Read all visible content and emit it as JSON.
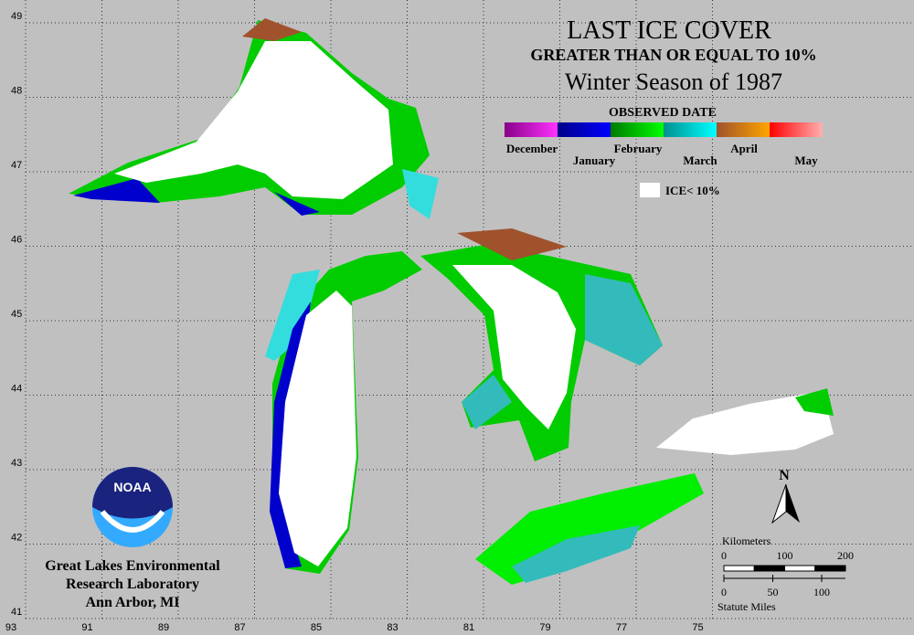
{
  "title": "LAST ICE COVER",
  "subtitle": "GREATER THAN OR EQUAL TO 10%",
  "season": "Winter Season of 1987",
  "legend": {
    "title": "OBSERVED DATE",
    "items": [
      {
        "label": "December",
        "colors": [
          "#880088",
          "#ff33ff"
        ]
      },
      {
        "label": "January",
        "colors": [
          "#000088",
          "#0000ff"
        ]
      },
      {
        "label": "February",
        "colors": [
          "#007a00",
          "#00ff00"
        ]
      },
      {
        "label": "March",
        "colors": [
          "#008f8f",
          "#00ffff"
        ]
      },
      {
        "label": "April",
        "colors": [
          "#a0522d",
          "#ffa500"
        ]
      },
      {
        "label": "May",
        "colors": [
          "#ff0000",
          "#ffb0b0"
        ]
      }
    ],
    "ice_label": "ICE< 10%"
  },
  "longitude_ticks": [
    93,
    91,
    89,
    87,
    85,
    83,
    81,
    79,
    77,
    75
  ],
  "latitude_ticks": [
    49,
    48,
    47,
    46,
    45,
    44,
    43,
    42,
    41
  ],
  "north": "N",
  "scale": {
    "km_label": "Kilometers",
    "km_ticks": [
      0,
      100,
      200
    ],
    "mi_ticks": [
      0,
      50,
      100
    ],
    "mi_label": "Statute Miles"
  },
  "organization": [
    "Great Lakes Environmental",
    "Research Laboratory",
    "Ann Arbor, MI"
  ],
  "logo_text": "NOAA"
}
